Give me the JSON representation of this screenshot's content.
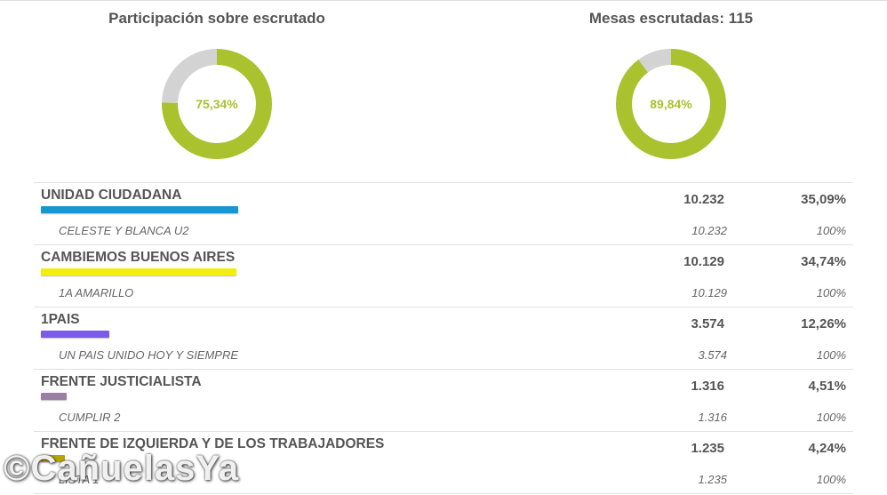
{
  "chart_data": [
    {
      "type": "pie",
      "title": "Participación sobre escrutado",
      "center_label": "75,34%",
      "values": [
        75.34,
        24.66
      ],
      "colors": [
        "#a9c22e",
        "#d3d3d3"
      ]
    },
    {
      "type": "pie",
      "title": "Mesas escrutadas: 115",
      "center_label": "89,84%",
      "values": [
        89.84,
        10.16
      ],
      "colors": [
        "#a9c22e",
        "#d3d3d3"
      ]
    },
    {
      "type": "bar",
      "categories": [
        "UNIDAD CIUDADANA",
        "CAMBIEMOS BUENOS AIRES",
        "1PAIS",
        "FRENTE JUSTICIALISTA",
        "FRENTE DE IZQUIERDA Y DE LOS TRABAJADORES"
      ],
      "values": [
        35.09,
        34.74,
        12.26,
        4.51,
        4.24
      ],
      "xlim": [
        0,
        100
      ]
    }
  ],
  "parties": [
    {
      "name": "UNIDAD CIUDADANA",
      "votes": "10.232",
      "pct": "35,09%",
      "pct_value": 35.09,
      "color": "#1a96cf",
      "list": {
        "name": "CELESTE Y BLANCA U2",
        "votes": "10.232",
        "pct": "100%"
      }
    },
    {
      "name": "CAMBIEMOS BUENOS AIRES",
      "votes": "10.129",
      "pct": "34,74%",
      "pct_value": 34.74,
      "color": "#f2ef0a",
      "list": {
        "name": "1A AMARILLO",
        "votes": "10.129",
        "pct": "100%"
      }
    },
    {
      "name": "1PAIS",
      "votes": "3.574",
      "pct": "12,26%",
      "pct_value": 12.26,
      "color": "#7a5ce6",
      "list": {
        "name": "UN PAIS UNIDO HOY Y SIEMPRE",
        "votes": "3.574",
        "pct": "100%"
      }
    },
    {
      "name": "FRENTE JUSTICIALISTA",
      "votes": "1.316",
      "pct": "4,51%",
      "pct_value": 4.51,
      "color": "#9b7ea3",
      "list": {
        "name": "CUMPLIR 2",
        "votes": "1.316",
        "pct": "100%"
      }
    },
    {
      "name": "FRENTE DE IZQUIERDA Y DE LOS TRABAJADORES",
      "votes": "1.235",
      "pct": "4,24%",
      "pct_value": 4.24,
      "color": "#b5a500",
      "list": {
        "name": "LISTA 1",
        "votes": "1.235",
        "pct": "100%"
      }
    }
  ],
  "watermark": "©CañuelasYa"
}
